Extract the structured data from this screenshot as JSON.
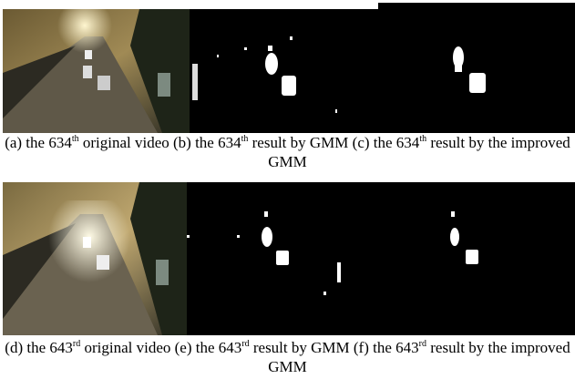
{
  "rows": [
    {
      "captions": [
        {
          "before": "(a) the 634",
          "sup": "th",
          "after": " original video"
        },
        {
          "before": "(b) the 634",
          "sup": "th",
          "after": " result by GMM"
        },
        {
          "before": "(c) the 634",
          "sup": "th",
          "after": " result by the improved GMM"
        }
      ]
    },
    {
      "captions": [
        {
          "before": "(d) the 643",
          "sup": "rd",
          "after": " original video"
        },
        {
          "before": "(e) the 643",
          "sup": "rd",
          "after": " result by GMM"
        },
        {
          "before": "(f) the 643",
          "sup": "rd",
          "after": " result by the improved GMM"
        }
      ]
    }
  ]
}
